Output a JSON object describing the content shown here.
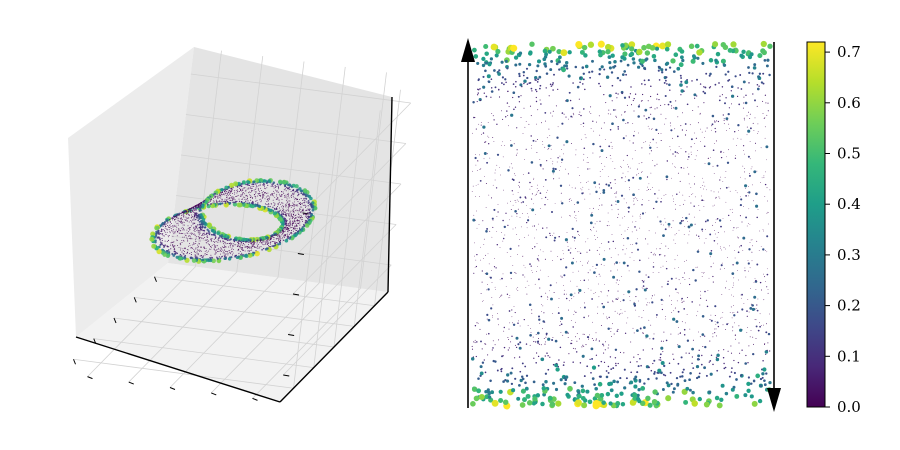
{
  "chart_data": [
    {
      "type": "scatter",
      "projection": "3d",
      "description_shape": "mobius-strip",
      "title": "",
      "xlabel": "",
      "ylabel": "",
      "zlabel": "",
      "x_range": [
        -1.6,
        1.6
      ],
      "y_range": [
        -1.6,
        1.6
      ],
      "z_range": [
        -1.6,
        1.6
      ],
      "tick_labels_shown": false,
      "grid": true,
      "point_count": 2500,
      "color_by": "value",
      "size_by": "value"
    },
    {
      "type": "scatter",
      "title": "",
      "xlabel": "",
      "ylabel": "",
      "x_range": [
        0,
        1
      ],
      "y_range": [
        0,
        1
      ],
      "axes_shown": false,
      "left_edge_arrow": "up",
      "right_edge_arrow": "down",
      "point_count": 2500,
      "color_by": "value",
      "size_by": "value"
    }
  ],
  "colorbar": {
    "min": 0.0,
    "max": 0.72,
    "ticks": [
      "0.0",
      "0.1",
      "0.2",
      "0.3",
      "0.4",
      "0.5",
      "0.6",
      "0.7"
    ],
    "tick_values": [
      0.0,
      0.1,
      0.2,
      0.3,
      0.4,
      0.5,
      0.6,
      0.7
    ],
    "colormap": "viridis"
  },
  "colors": {
    "viridis": [
      "#440154",
      "#482878",
      "#3e4989",
      "#31688e",
      "#26828e",
      "#1f9e89",
      "#35b779",
      "#6ece58",
      "#b5de2b",
      "#fde725"
    ],
    "pane_left": "#ececec",
    "pane_right": "#e4e4e4",
    "pane_floor": "#f2f2f2",
    "grid": "#d2d2d2",
    "axis": "#000000"
  }
}
